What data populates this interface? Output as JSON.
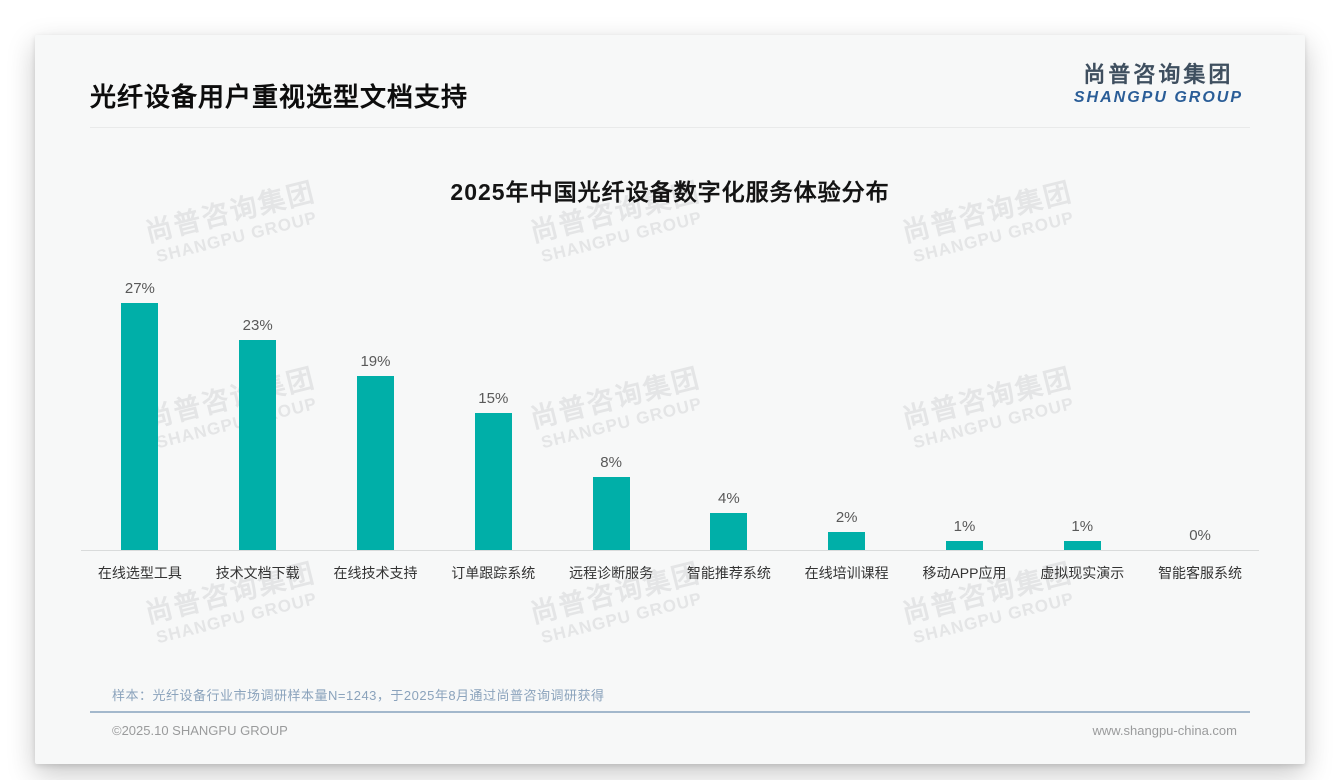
{
  "header": {
    "title": "光纤设备用户重视选型文档支持"
  },
  "logo": {
    "cn": "尚普咨询集团",
    "en": "SHANGPU GROUP"
  },
  "chart_data": {
    "type": "bar",
    "title": "2025年中国光纤设备数字化服务体验分布",
    "categories": [
      "在线选型工具",
      "技术文档下载",
      "在线技术支持",
      "订单跟踪系统",
      "远程诊断服务",
      "智能推荐系统",
      "在线培训课程",
      "移动APP应用",
      "虚拟现实演示",
      "智能客服系统"
    ],
    "values": [
      27,
      23,
      19,
      15,
      8,
      4,
      2,
      1,
      1,
      0
    ],
    "display_values": [
      "27%",
      "23%",
      "19%",
      "15%",
      "8%",
      "4%",
      "2%",
      "1%",
      "1%",
      "0%"
    ],
    "xlabel": "",
    "ylabel": "",
    "unit": "%",
    "ylim": [
      0,
      30
    ],
    "grid": false,
    "legend": false,
    "bar_color": "#00AFA8"
  },
  "watermark": {
    "cn": "尚普咨询集团",
    "en": "SHANGPU GROUP"
  },
  "footnote": {
    "text": "样本：光纤设备行业市场调研样本量N=1243，于2025年8月通过尚普咨询调研获得"
  },
  "footer": {
    "left": "©2025.10 SHANGPU GROUP",
    "right": "www.shangpu-china.com"
  },
  "colors": {
    "bar": "#00AFA8",
    "logo_cn": "#3F4F5F",
    "logo_en": "#2A5D97",
    "footnote_text": "#8BA3BC",
    "footer_divider": "#A3B8CC",
    "value_label": "#595959",
    "category_label": "#333333"
  }
}
